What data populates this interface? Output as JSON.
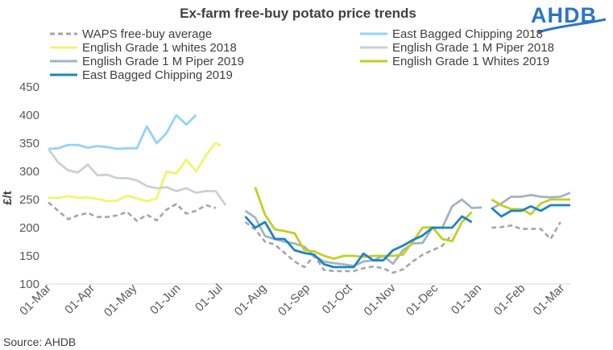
{
  "chart_data": {
    "type": "line",
    "title": "Ex-farm free-buy potato price trends",
    "xlabel": "",
    "ylabel": "£/t",
    "ylim": [
      100,
      450
    ],
    "yticks": [
      100,
      150,
      200,
      250,
      300,
      350,
      400,
      450
    ],
    "grid": false,
    "x_unit": "weeks since 01-Mar-2018",
    "xlim": [
      0,
      53
    ],
    "categories": [
      "01-Mar",
      "01-Apr",
      "01-May",
      "01-Jun",
      "01-Jul",
      "01-Aug",
      "01-Sep",
      "01-Oct",
      "01-Nov",
      "01-Dec",
      "01-Jan",
      "01-Feb",
      "01-Mar"
    ],
    "category_weeks": [
      0,
      4.43,
      8.71,
      13.14,
      17.43,
      21.86,
      26.29,
      30.57,
      35,
      39.29,
      43.71,
      48.14,
      52.14
    ],
    "legend_position": "top",
    "source": "Source: AHDB",
    "logo": "AHDB",
    "series": [
      {
        "name": "WAPS free-buy average",
        "color": "#a6a6a6",
        "style": "dashed",
        "segments": [
          {
            "x": [
              0,
              1,
              2,
              3,
              4,
              5,
              6,
              7,
              8,
              9,
              10,
              11,
              12,
              13,
              14,
              15,
              16,
              17
            ],
            "y": [
              245,
              230,
              215,
              222,
              226,
              219,
              219,
              222,
              228,
              212,
              223,
              213,
              232,
              242,
              225,
              230,
              240,
              235
            ]
          },
          {
            "x": [
              20,
              21,
              22,
              23,
              24,
              25,
              26,
              27,
              28,
              29,
              30,
              31,
              32,
              33,
              34,
              35,
              36,
              37,
              38,
              39,
              40,
              41
            ],
            "y": [
              210,
              197,
              175,
              170,
              155,
              140,
              130,
              150,
              125,
              123,
              123,
              123,
              128,
              131,
              128,
              120,
              126,
              140,
              152,
              160,
              168,
              188
            ]
          },
          {
            "x": [
              45,
              46,
              47,
              48,
              50,
              51,
              52
            ],
            "y": [
              200,
              201,
              204,
              198,
              198,
              180,
              210
            ]
          }
        ]
      },
      {
        "name": "East Bagged Chipping 2018",
        "color": "#92d4f9",
        "style": "solid",
        "segments": [
          {
            "x": [
              0,
              1,
              2,
              3,
              4,
              5,
              6,
              7,
              8,
              9,
              10,
              11,
              12,
              13,
              14,
              15
            ],
            "y": [
              340,
              341,
              347,
              347,
              342,
              345,
              343,
              340,
              341,
              341,
              380,
              350,
              368,
              400,
              383,
              400
            ]
          }
        ]
      },
      {
        "name": "English Grade 1 whites 2018",
        "color": "#f2f56b",
        "style": "solid",
        "segments": [
          {
            "x": [
              0,
              1,
              2,
              3,
              4,
              5,
              6,
              7,
              8,
              9,
              10,
              11,
              12,
              13,
              14,
              15,
              16,
              17
            ],
            "y": [
              253,
              253,
              256,
              253,
              254,
              251,
              247,
              248,
              257,
              252,
              247,
              252,
              300,
              296,
              321,
              300,
              328,
              351
            ]
          },
          {
            "x": [
              17,
              17.5
            ],
            "y": [
              351,
              345
            ]
          }
        ]
      },
      {
        "name": "English Grade 1 M Piper 2018",
        "color": "#c9d1d5",
        "style": "solid",
        "segments": [
          {
            "x": [
              0,
              1,
              2,
              3,
              4,
              5,
              6,
              7,
              8,
              9,
              10,
              11,
              12,
              13,
              14,
              15,
              16,
              17
            ],
            "y": [
              340,
              316,
              302,
              298,
              312,
              293,
              294,
              288,
              288,
              284,
              274,
              270,
              272,
              265,
              270,
              262,
              265,
              265
            ]
          },
          {
            "x": [
              17,
              18
            ],
            "y": [
              265,
              240
            ]
          }
        ]
      },
      {
        "name": "English Grade 1 M Piper 2019",
        "color": "#a2b4bf",
        "style": "solid",
        "segments": [
          {
            "x": [
              20,
              21,
              22,
              23,
              24,
              25,
              26,
              27,
              28,
              29,
              30,
              31,
              32,
              33,
              34,
              35,
              36,
              37,
              38,
              39,
              40,
              41,
              42,
              43,
              44
            ],
            "y": [
              230,
              218,
              185,
              180,
              175,
              172,
              166,
              150,
              140,
              137,
              135,
              132,
              140,
              142,
              150,
              136,
              160,
              172,
              173,
              200,
              200,
              238,
              250,
              235,
              236
            ]
          },
          {
            "x": [
              45,
              46,
              47,
              48,
              49,
              50,
              51,
              52,
              53
            ],
            "y": [
              234,
              243,
              255,
              255,
              258,
              255,
              254,
              255,
              262
            ]
          }
        ]
      },
      {
        "name": "English Grade 1 Whites 2019",
        "color": "#c5cf1e",
        "style": "solid",
        "segments": [
          {
            "x": [
              21,
              22,
              23,
              24,
              25,
              26,
              27,
              28,
              29,
              30,
              31,
              32,
              33,
              34,
              35,
              36,
              37,
              38,
              39,
              40,
              41,
              42,
              43
            ],
            "y": [
              272,
              223,
              197,
              194,
              190,
              160,
              158,
              150,
              145,
              150,
              150,
              148,
              150,
              150,
              150,
              152,
              175,
              200,
              201,
              180,
              176,
              210,
              228
            ]
          },
          {
            "x": [
              45,
              46,
              47,
              48,
              49,
              50,
              51,
              52,
              53
            ],
            "y": [
              250,
              240,
              233,
              233,
              224,
              243,
              250,
              250,
              250
            ]
          }
        ]
      },
      {
        "name": "East Bagged Chipping 2019",
        "color": "#1b84c6",
        "style": "solid",
        "segments": [
          {
            "x": [
              20,
              21,
              22,
              23,
              24,
              25,
              26,
              27,
              28,
              29,
              30,
              31,
              32,
              33,
              34,
              35,
              36,
              37,
              38,
              39,
              40,
              41,
              42,
              43
            ],
            "y": [
              220,
              200,
              210,
              180,
              180,
              160,
              155,
              152,
              135,
              130,
              130,
              130,
              154,
              142,
              142,
              160,
              168,
              178,
              186,
              200,
              200,
              200,
              220,
              210
            ]
          },
          {
            "x": [
              45,
              46,
              47,
              48,
              49,
              50,
              51,
              52,
              53
            ],
            "y": [
              235,
              220,
              230,
              230,
              238,
              230,
              240,
              240,
              240
            ]
          }
        ]
      }
    ]
  }
}
